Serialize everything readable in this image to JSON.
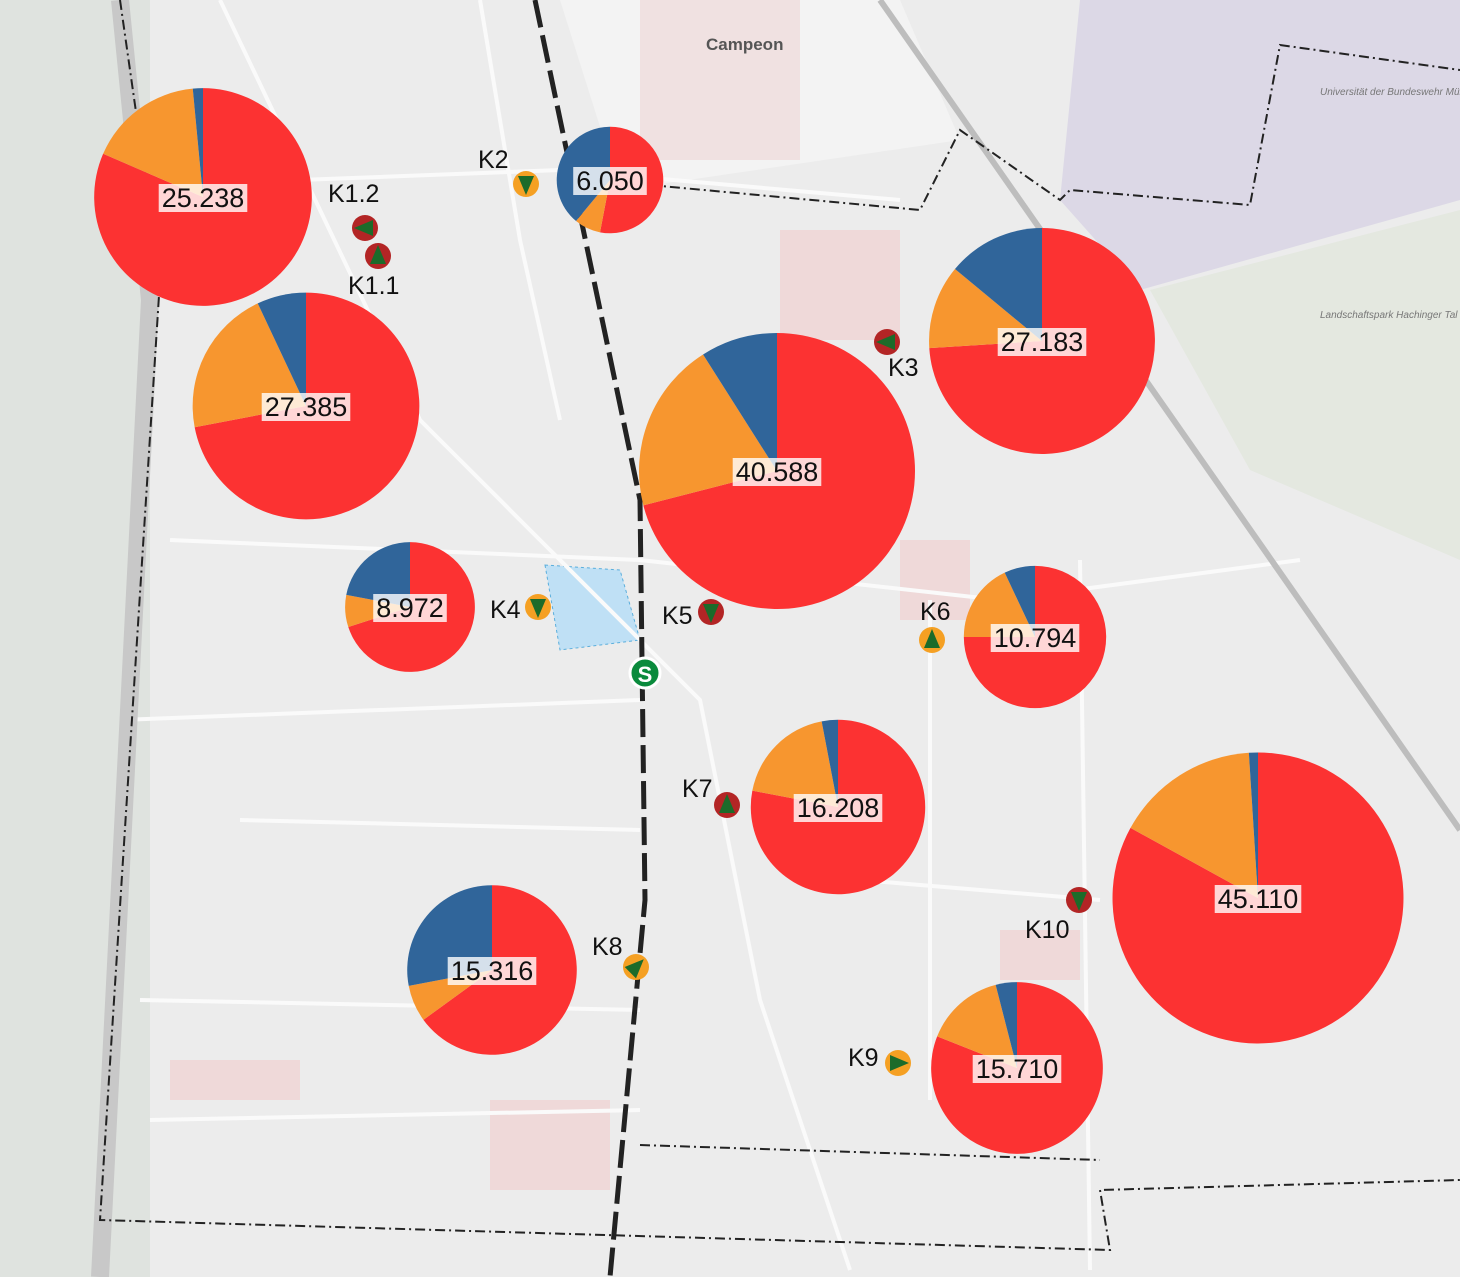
{
  "map": {
    "place_labels": [
      "Campeon",
      "Universität der Bundeswehr München",
      "Landschaftspark Hachinger Tal"
    ],
    "station_symbol": "S"
  },
  "colors": {
    "red": "#fc3232",
    "orange": "#f7962f",
    "blue": "#30659a",
    "marker_red": "#b32525",
    "marker_orange": "#f5a023",
    "arrow_green": "#1c6b2a"
  },
  "counting_points": [
    {
      "id": "K1.2",
      "marker": "red",
      "direction": "left"
    },
    {
      "id": "K1.1",
      "marker": "red",
      "direction": "up"
    },
    {
      "id": "K2",
      "marker": "orange",
      "direction": "down"
    },
    {
      "id": "K3",
      "marker": "red",
      "direction": "left"
    },
    {
      "id": "K4",
      "marker": "orange",
      "direction": "down"
    },
    {
      "id": "K5",
      "marker": "red",
      "direction": "down"
    },
    {
      "id": "K6",
      "marker": "orange",
      "direction": "up"
    },
    {
      "id": "K7",
      "marker": "red",
      "direction": "up"
    },
    {
      "id": "K8",
      "marker": "orange",
      "direction": "up-right"
    },
    {
      "id": "K9",
      "marker": "orange",
      "direction": "right"
    },
    {
      "id": "K10",
      "marker": "red",
      "direction": "down"
    }
  ],
  "chart_data": {
    "type": "pie",
    "series_order": [
      "red",
      "orange",
      "blue"
    ],
    "pies": [
      {
        "label": "25.238",
        "total": 25238,
        "shares": [
          81.5,
          17,
          1.5
        ]
      },
      {
        "label": "6.050",
        "total": 6050,
        "shares": [
          53,
          8,
          39
        ]
      },
      {
        "label": "27.385",
        "total": 27385,
        "shares": [
          72,
          21,
          7
        ]
      },
      {
        "label": "40.588",
        "total": 40588,
        "shares": [
          71,
          20,
          9
        ]
      },
      {
        "label": "27.183",
        "total": 27183,
        "shares": [
          74,
          12,
          14
        ]
      },
      {
        "label": "8.972",
        "total": 8972,
        "shares": [
          70,
          8,
          22
        ]
      },
      {
        "label": "10.794",
        "total": 10794,
        "shares": [
          75,
          18,
          7
        ]
      },
      {
        "label": "16.208",
        "total": 16208,
        "shares": [
          78,
          19,
          3
        ]
      },
      {
        "label": "45.110",
        "total": 45110,
        "shares": [
          83,
          16,
          1
        ]
      },
      {
        "label": "15.316",
        "total": 15316,
        "shares": [
          65,
          7,
          28
        ]
      },
      {
        "label": "15.710",
        "total": 15710,
        "shares": [
          81,
          15,
          4
        ]
      }
    ]
  }
}
